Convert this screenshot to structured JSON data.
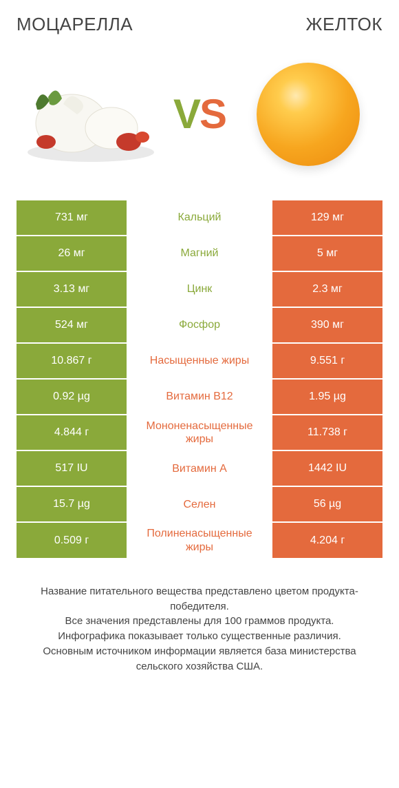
{
  "colors": {
    "left": "#8aa93a",
    "right": "#e46a3d",
    "text_dark": "#444444",
    "bg": "#ffffff"
  },
  "header": {
    "left_title": "МОЦАРЕЛЛА",
    "right_title": "ЖЕЛТОК",
    "vs_v": "V",
    "vs_s": "S"
  },
  "table": {
    "rows": [
      {
        "left": "731 мг",
        "label": "Кальций",
        "right": "129 мг",
        "winner": "left"
      },
      {
        "left": "26 мг",
        "label": "Магний",
        "right": "5 мг",
        "winner": "left"
      },
      {
        "left": "3.13 мг",
        "label": "Цинк",
        "right": "2.3 мг",
        "winner": "left"
      },
      {
        "left": "524 мг",
        "label": "Фосфор",
        "right": "390 мг",
        "winner": "left"
      },
      {
        "left": "10.867 г",
        "label": "Насыщенные жиры",
        "right": "9.551 г",
        "winner": "right"
      },
      {
        "left": "0.92 µg",
        "label": "Витамин B12",
        "right": "1.95 µg",
        "winner": "right"
      },
      {
        "left": "4.844 г",
        "label": "Мононенасыщенные жиры",
        "right": "11.738 г",
        "winner": "right"
      },
      {
        "left": "517 IU",
        "label": "Витамин A",
        "right": "1442 IU",
        "winner": "right"
      },
      {
        "left": "15.7 µg",
        "label": "Селен",
        "right": "56 µg",
        "winner": "right"
      },
      {
        "left": "0.509 г",
        "label": "Полиненасыщенные жиры",
        "right": "4.204 г",
        "winner": "right"
      }
    ]
  },
  "footer": {
    "line1": "Название питательного вещества представлено цветом продукта-победителя.",
    "line2": "Все значения представлены для 100 граммов продукта.",
    "line3": "Инфографика показывает только существенные различия.",
    "line4": "Основным источником информации является база министерства сельского хозяйства США."
  }
}
